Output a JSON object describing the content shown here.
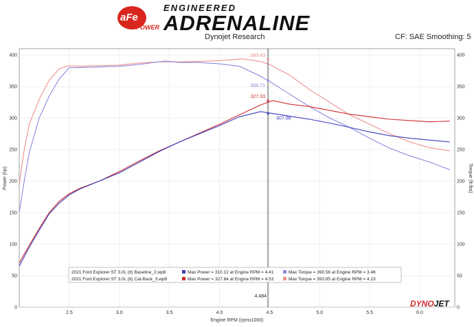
{
  "header": {
    "logo_text": "aFe POWER",
    "title_top": "ENGINEERED",
    "title_main": "ADRENALINE",
    "center_label": "Dynojet Research",
    "right_label": "CF: SAE Smoothing: 5"
  },
  "brand": {
    "dyno": "DYNO",
    "jet": "JET"
  },
  "colors": {
    "baseline_power": "#3b3bc0",
    "baseline_torque": "#8a8ae0",
    "catback_power": "#d02c2c",
    "catback_torque": "#ee8f8f",
    "cursor": "#222222"
  },
  "chart_data": {
    "type": "line",
    "xlabel": "Engine RPM (rpmx1000)",
    "ylabel_left": "Power (hp)",
    "ylabel_right": "Torque (ft-lbs)",
    "xlim": [
      2.0,
      6.35
    ],
    "ylim": [
      0,
      410
    ],
    "x_ticks": [
      "2.5",
      "3.0",
      "3.5",
      "4.0",
      "4.5",
      "5.0",
      "5.5",
      "6.0"
    ],
    "y_ticks": [
      "0",
      "50",
      "100",
      "150",
      "200",
      "250",
      "300",
      "350",
      "400"
    ],
    "cursor": {
      "x": 4.484,
      "label": "4.484"
    },
    "annotations": [
      {
        "text": "393.43",
        "x": 4.484,
        "y": 393.43,
        "series": "catback_torque"
      },
      {
        "text": "327.33",
        "x": 4.484,
        "y": 327.33,
        "series": "catback_power"
      },
      {
        "text": "359.71",
        "x": 4.484,
        "y": 359.71,
        "series": "baseline_torque"
      },
      {
        "text": "307.08",
        "x": 4.484,
        "y": 307.08,
        "series": "baseline_power"
      }
    ],
    "legend": [
      {
        "file": "2021 Ford Explorer ST 3.0L (tt) Baseline_2.wp8",
        "power": "Max Power = 310.12 at Engine RPM = 4.41",
        "torque": "Max Torque = 390.56 at Engine RPM = 3.46",
        "power_color": "#3b3bc0",
        "torque_color": "#8a8ae0"
      },
      {
        "file": "2021 Ford Explorer ST 3.0L (tt) Cat-Back_3.wp8",
        "power": "Max Power = 327.64 at Engine RPM = 4.53",
        "torque": "Max Torque = 393.85 at Engine RPM = 4.23",
        "power_color": "#d02c2c",
        "torque_color": "#ee8f8f"
      }
    ],
    "series": [
      {
        "key": "catback_torque",
        "color": "#ee8f8f",
        "x": [
          2.0,
          2.05,
          2.1,
          2.2,
          2.3,
          2.4,
          2.5,
          2.6,
          2.8,
          3.0,
          3.2,
          3.4,
          3.6,
          3.8,
          4.0,
          4.23,
          4.4,
          4.5,
          4.7,
          4.9,
          5.1,
          5.3,
          5.5,
          5.7,
          5.9,
          6.1,
          6.3
        ],
        "y": [
          195,
          250,
          290,
          330,
          360,
          378,
          383,
          382,
          383,
          384,
          387,
          389,
          389,
          390,
          391,
          393.85,
          390,
          385,
          368,
          345,
          325,
          305,
          290,
          275,
          262,
          253,
          248
        ]
      },
      {
        "key": "baseline_torque",
        "color": "#8a8ae0",
        "x": [
          2.0,
          2.05,
          2.1,
          2.2,
          2.3,
          2.4,
          2.5,
          2.6,
          2.8,
          3.0,
          3.2,
          3.46,
          3.6,
          3.8,
          4.0,
          4.2,
          4.4,
          4.5,
          4.7,
          4.9,
          5.1,
          5.3,
          5.5,
          5.7,
          5.9,
          6.1,
          6.3
        ],
        "y": [
          150,
          200,
          245,
          300,
          335,
          362,
          380,
          380,
          381,
          382,
          385,
          390.56,
          388,
          388,
          386,
          382,
          367,
          358,
          338,
          318,
          300,
          285,
          268,
          252,
          240,
          230,
          218
        ]
      },
      {
        "key": "catback_power",
        "color": "#d02c2c",
        "x": [
          2.0,
          2.1,
          2.2,
          2.3,
          2.4,
          2.5,
          2.6,
          2.8,
          3.0,
          3.2,
          3.4,
          3.6,
          3.8,
          4.0,
          4.2,
          4.4,
          4.53,
          4.7,
          4.9,
          5.1,
          5.3,
          5.5,
          5.7,
          5.9,
          6.1,
          6.3
        ],
        "y": [
          70,
          98,
          125,
          150,
          168,
          180,
          188,
          200,
          215,
          232,
          248,
          262,
          276,
          290,
          305,
          320,
          327.64,
          322,
          318,
          312,
          306,
          302,
          298,
          296,
          294,
          295
        ]
      },
      {
        "key": "baseline_power",
        "color": "#3b3bc0",
        "x": [
          2.0,
          2.1,
          2.2,
          2.3,
          2.4,
          2.5,
          2.6,
          2.8,
          3.0,
          3.2,
          3.4,
          3.6,
          3.8,
          4.0,
          4.2,
          4.41,
          4.5,
          4.7,
          4.9,
          5.1,
          5.3,
          5.5,
          5.7,
          5.9,
          6.1,
          6.3
        ],
        "y": [
          65,
          95,
          122,
          148,
          165,
          178,
          187,
          200,
          213,
          230,
          247,
          262,
          275,
          288,
          302,
          310.12,
          308,
          303,
          298,
          292,
          285,
          278,
          272,
          268,
          265,
          262
        ]
      }
    ]
  }
}
